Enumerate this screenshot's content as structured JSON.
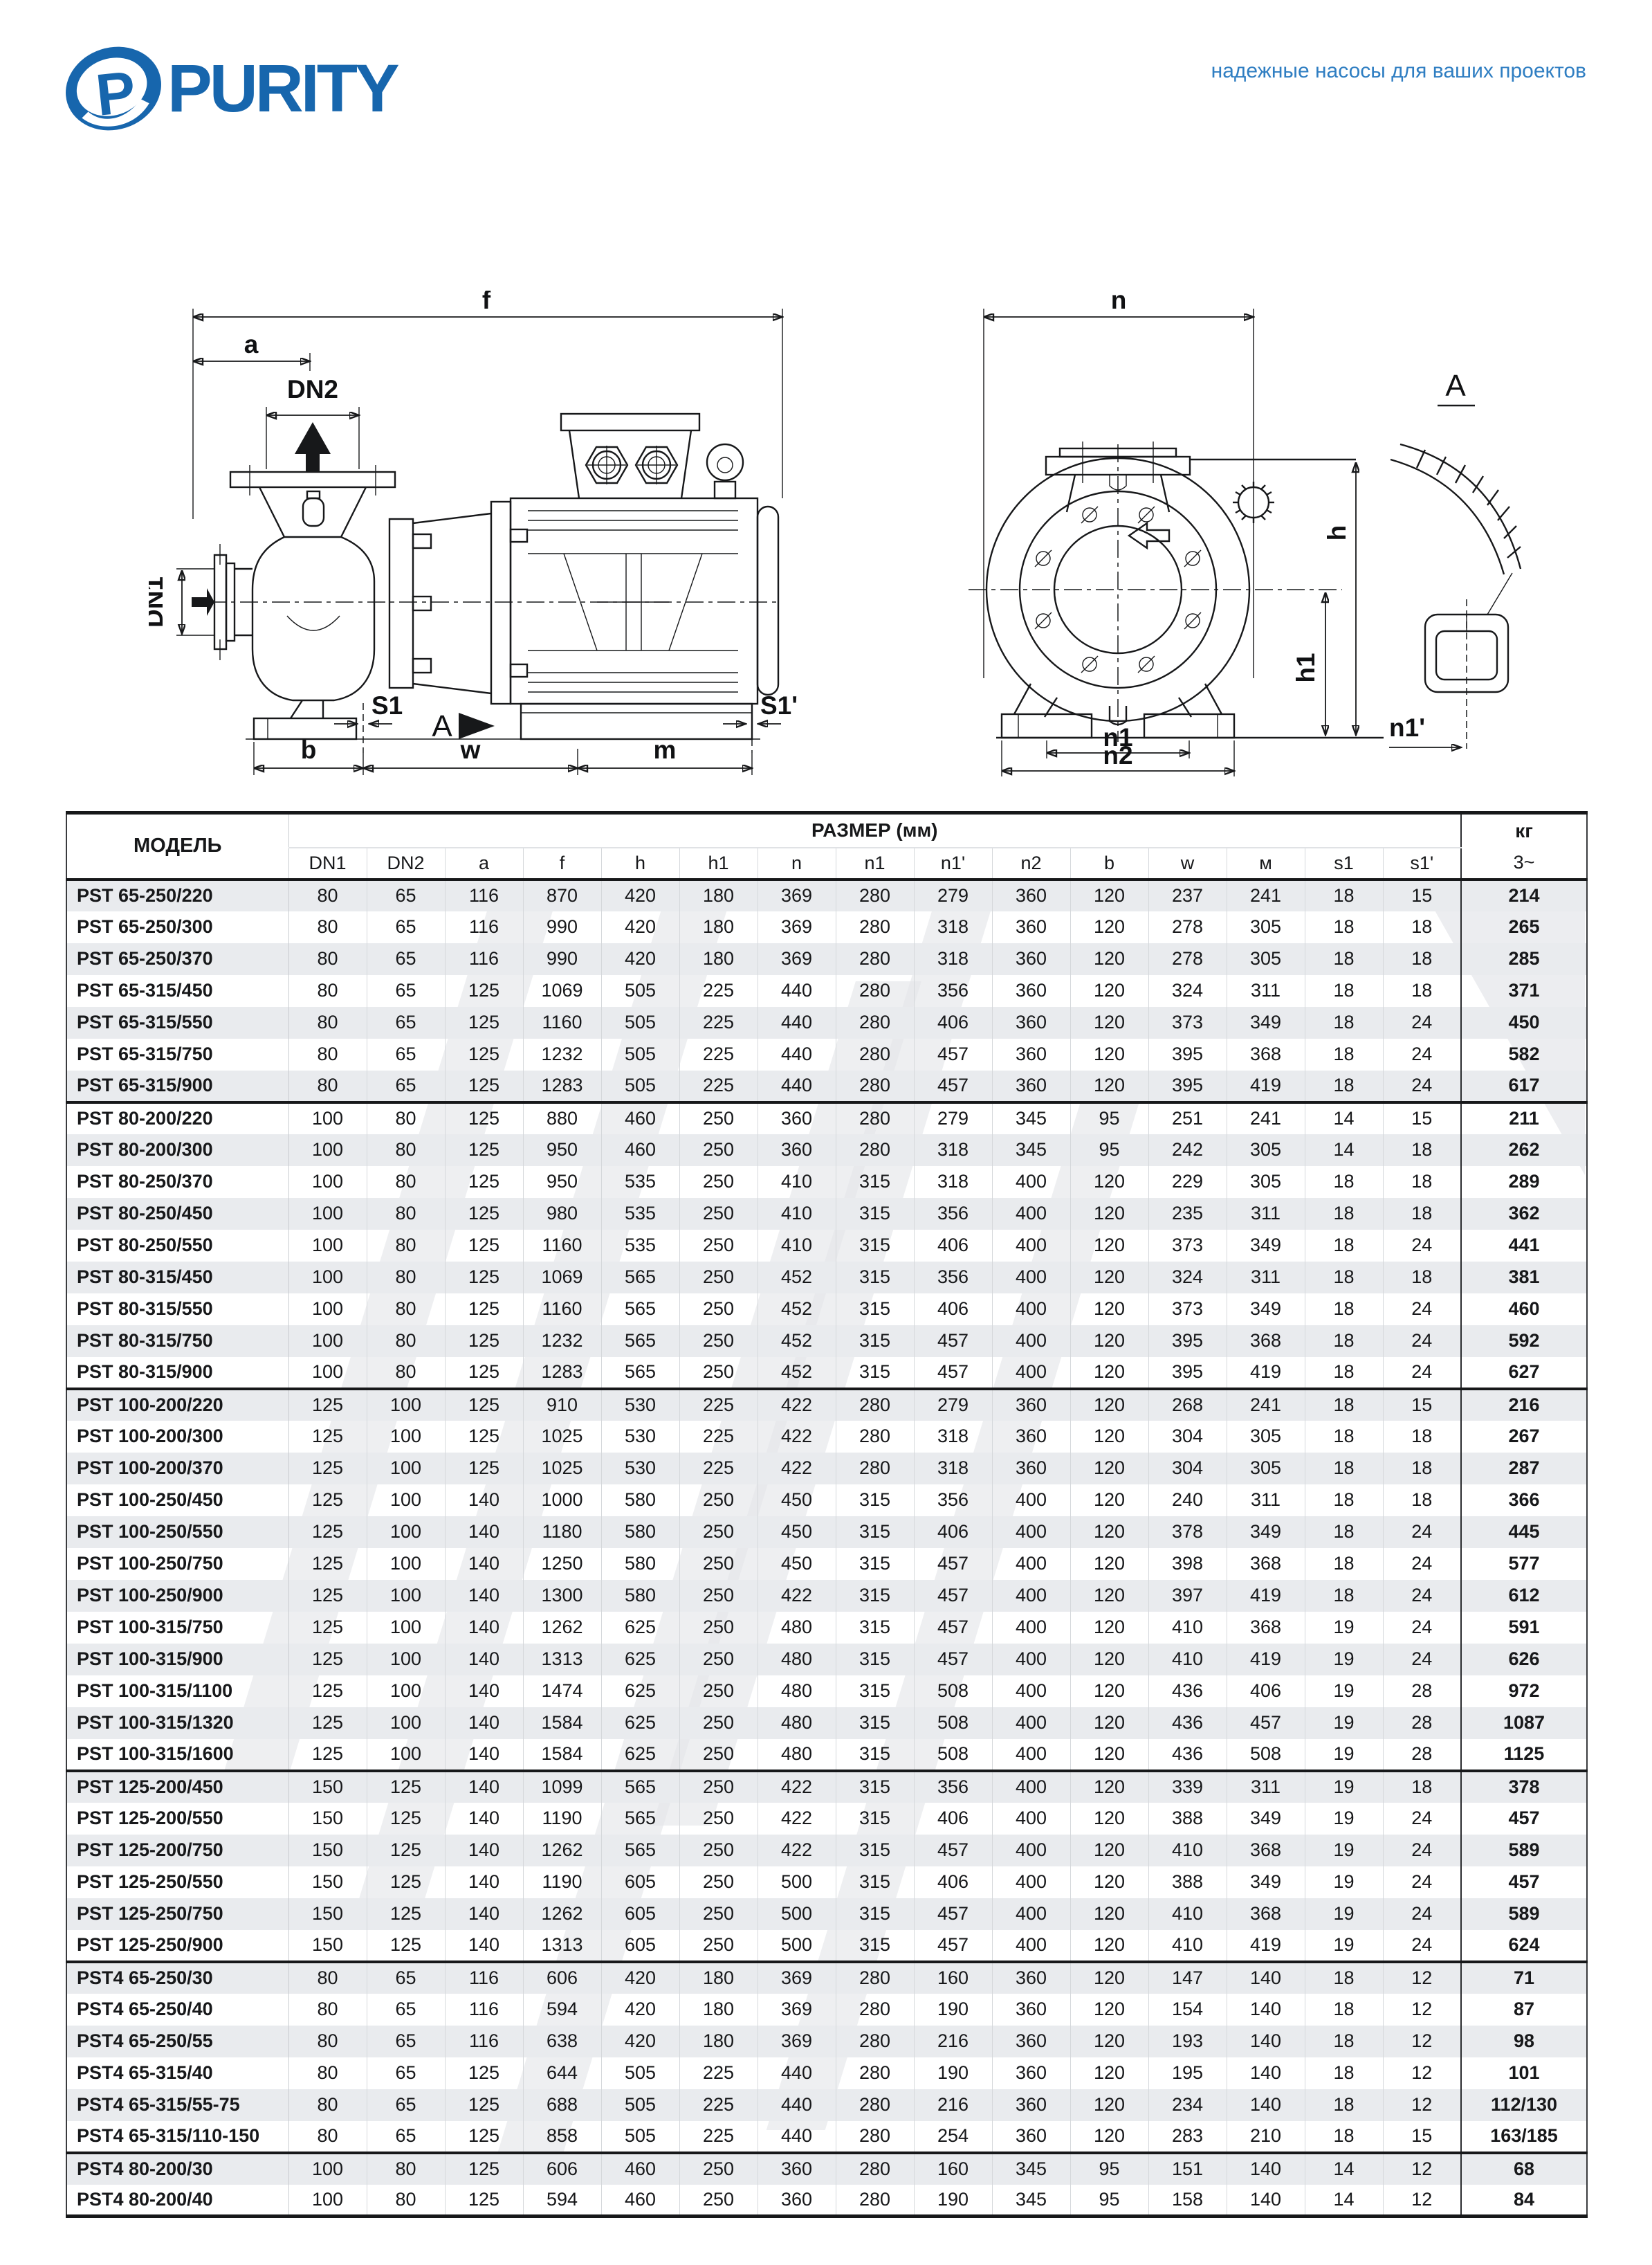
{
  "theme": {
    "logo_blue": "#1766ad",
    "tagline_blue": "#2f7ec2",
    "stripe_gray": "#e9ebee",
    "line_black": "#17181a"
  },
  "header": {
    "logo_text": "PURITY",
    "tagline": "надежные насосы для ваших проектов"
  },
  "drawings": {
    "side_view": {
      "f": "f",
      "a": "a",
      "dn2": "DN2",
      "dn1": "DN1",
      "s1": "S1",
      "view_arrow": "A",
      "s1_prime": "S1'",
      "b": "b",
      "w": "w",
      "m": "m"
    },
    "front_view": {
      "n": "n",
      "h": "h",
      "h1": "h1",
      "n1": "n1",
      "n2": "n2",
      "n1_prime": "n1'",
      "detail": "A"
    }
  },
  "table": {
    "header": {
      "model": "МОДЕЛЬ",
      "size_group": "РАЗМЕР (мм)",
      "weight": "кг",
      "weight_sub": "3~",
      "columns": [
        "DN1",
        "DN2",
        "a",
        "f",
        "h",
        "h1",
        "n",
        "n1",
        "n1'",
        "n2",
        "b",
        "w",
        "м",
        "s1",
        "s1'"
      ]
    },
    "rows": [
      {
        "model": "PST 65-250/220",
        "values": [
          80,
          65,
          116,
          870,
          420,
          180,
          369,
          280,
          279,
          360,
          120,
          237,
          241,
          18,
          15
        ],
        "weight": "214",
        "section_start": false
      },
      {
        "model": "PST 65-250/300",
        "values": [
          80,
          65,
          116,
          990,
          420,
          180,
          369,
          280,
          318,
          360,
          120,
          278,
          305,
          18,
          18
        ],
        "weight": "265",
        "section_start": false
      },
      {
        "model": "PST 65-250/370",
        "values": [
          80,
          65,
          116,
          990,
          420,
          180,
          369,
          280,
          318,
          360,
          120,
          278,
          305,
          18,
          18
        ],
        "weight": "285",
        "section_start": false
      },
      {
        "model": "PST 65-315/450",
        "values": [
          80,
          65,
          125,
          1069,
          505,
          225,
          440,
          280,
          356,
          360,
          120,
          324,
          311,
          18,
          18
        ],
        "weight": "371",
        "section_start": false
      },
      {
        "model": "PST 65-315/550",
        "values": [
          80,
          65,
          125,
          1160,
          505,
          225,
          440,
          280,
          406,
          360,
          120,
          373,
          349,
          18,
          24
        ],
        "weight": "450",
        "section_start": false
      },
      {
        "model": "PST 65-315/750",
        "values": [
          80,
          65,
          125,
          1232,
          505,
          225,
          440,
          280,
          457,
          360,
          120,
          395,
          368,
          18,
          24
        ],
        "weight": "582",
        "section_start": false
      },
      {
        "model": "PST 65-315/900",
        "values": [
          80,
          65,
          125,
          1283,
          505,
          225,
          440,
          280,
          457,
          360,
          120,
          395,
          419,
          18,
          24
        ],
        "weight": "617",
        "section_start": false
      },
      {
        "model": "PST 80-200/220",
        "values": [
          100,
          80,
          125,
          880,
          460,
          250,
          360,
          280,
          279,
          345,
          95,
          251,
          241,
          14,
          15
        ],
        "weight": "211",
        "section_start": true
      },
      {
        "model": "PST 80-200/300",
        "values": [
          100,
          80,
          125,
          950,
          460,
          250,
          360,
          280,
          318,
          345,
          95,
          242,
          305,
          14,
          18
        ],
        "weight": "262",
        "section_start": false
      },
      {
        "model": "PST 80-250/370",
        "values": [
          100,
          80,
          125,
          950,
          535,
          250,
          410,
          315,
          318,
          400,
          120,
          229,
          305,
          18,
          18
        ],
        "weight": "289",
        "section_start": false
      },
      {
        "model": "PST 80-250/450",
        "values": [
          100,
          80,
          125,
          980,
          535,
          250,
          410,
          315,
          356,
          400,
          120,
          235,
          311,
          18,
          18
        ],
        "weight": "362",
        "section_start": false
      },
      {
        "model": "PST 80-250/550",
        "values": [
          100,
          80,
          125,
          1160,
          535,
          250,
          410,
          315,
          406,
          400,
          120,
          373,
          349,
          18,
          24
        ],
        "weight": "441",
        "section_start": false
      },
      {
        "model": "PST 80-315/450",
        "values": [
          100,
          80,
          125,
          1069,
          565,
          250,
          452,
          315,
          356,
          400,
          120,
          324,
          311,
          18,
          18
        ],
        "weight": "381",
        "section_start": false
      },
      {
        "model": "PST 80-315/550",
        "values": [
          100,
          80,
          125,
          1160,
          565,
          250,
          452,
          315,
          406,
          400,
          120,
          373,
          349,
          18,
          24
        ],
        "weight": "460",
        "section_start": false
      },
      {
        "model": "PST 80-315/750",
        "values": [
          100,
          80,
          125,
          1232,
          565,
          250,
          452,
          315,
          457,
          400,
          120,
          395,
          368,
          18,
          24
        ],
        "weight": "592",
        "section_start": false
      },
      {
        "model": "PST 80-315/900",
        "values": [
          100,
          80,
          125,
          1283,
          565,
          250,
          452,
          315,
          457,
          400,
          120,
          395,
          419,
          18,
          24
        ],
        "weight": "627",
        "section_start": false
      },
      {
        "model": "PST 100-200/220",
        "values": [
          125,
          100,
          125,
          910,
          530,
          225,
          422,
          280,
          279,
          360,
          120,
          268,
          241,
          18,
          15
        ],
        "weight": "216",
        "section_start": true
      },
      {
        "model": "PST 100-200/300",
        "values": [
          125,
          100,
          125,
          1025,
          530,
          225,
          422,
          280,
          318,
          360,
          120,
          304,
          305,
          18,
          18
        ],
        "weight": "267",
        "section_start": false
      },
      {
        "model": "PST 100-200/370",
        "values": [
          125,
          100,
          125,
          1025,
          530,
          225,
          422,
          280,
          318,
          360,
          120,
          304,
          305,
          18,
          18
        ],
        "weight": "287",
        "section_start": false
      },
      {
        "model": "PST 100-250/450",
        "values": [
          125,
          100,
          140,
          1000,
          580,
          250,
          450,
          315,
          356,
          400,
          120,
          240,
          311,
          18,
          18
        ],
        "weight": "366",
        "section_start": false
      },
      {
        "model": "PST 100-250/550",
        "values": [
          125,
          100,
          140,
          1180,
          580,
          250,
          450,
          315,
          406,
          400,
          120,
          378,
          349,
          18,
          24
        ],
        "weight": "445",
        "section_start": false
      },
      {
        "model": "PST 100-250/750",
        "values": [
          125,
          100,
          140,
          1250,
          580,
          250,
          450,
          315,
          457,
          400,
          120,
          398,
          368,
          18,
          24
        ],
        "weight": "577",
        "section_start": false
      },
      {
        "model": "PST 100-250/900",
        "values": [
          125,
          100,
          140,
          1300,
          580,
          250,
          422,
          315,
          457,
          400,
          120,
          397,
          419,
          18,
          24
        ],
        "weight": "612",
        "section_start": false
      },
      {
        "model": "PST 100-315/750",
        "values": [
          125,
          100,
          140,
          1262,
          625,
          250,
          480,
          315,
          457,
          400,
          120,
          410,
          368,
          19,
          24
        ],
        "weight": "591",
        "section_start": false
      },
      {
        "model": "PST 100-315/900",
        "values": [
          125,
          100,
          140,
          1313,
          625,
          250,
          480,
          315,
          457,
          400,
          120,
          410,
          419,
          19,
          24
        ],
        "weight": "626",
        "section_start": false
      },
      {
        "model": "PST 100-315/1100",
        "values": [
          125,
          100,
          140,
          1474,
          625,
          250,
          480,
          315,
          508,
          400,
          120,
          436,
          406,
          19,
          28
        ],
        "weight": "972",
        "section_start": false
      },
      {
        "model": "PST 100-315/1320",
        "values": [
          125,
          100,
          140,
          1584,
          625,
          250,
          480,
          315,
          508,
          400,
          120,
          436,
          457,
          19,
          28
        ],
        "weight": "1087",
        "section_start": false
      },
      {
        "model": "PST 100-315/1600",
        "values": [
          125,
          100,
          140,
          1584,
          625,
          250,
          480,
          315,
          508,
          400,
          120,
          436,
          508,
          19,
          28
        ],
        "weight": "1125",
        "section_start": false
      },
      {
        "model": "PST 125-200/450",
        "values": [
          150,
          125,
          140,
          1099,
          565,
          250,
          422,
          315,
          356,
          400,
          120,
          339,
          311,
          19,
          18
        ],
        "weight": "378",
        "section_start": true
      },
      {
        "model": "PST 125-200/550",
        "values": [
          150,
          125,
          140,
          1190,
          565,
          250,
          422,
          315,
          406,
          400,
          120,
          388,
          349,
          19,
          24
        ],
        "weight": "457",
        "section_start": false
      },
      {
        "model": "PST 125-200/750",
        "values": [
          150,
          125,
          140,
          1262,
          565,
          250,
          422,
          315,
          457,
          400,
          120,
          410,
          368,
          19,
          24
        ],
        "weight": "589",
        "section_start": false
      },
      {
        "model": "PST 125-250/550",
        "values": [
          150,
          125,
          140,
          1190,
          605,
          250,
          500,
          315,
          406,
          400,
          120,
          388,
          349,
          19,
          24
        ],
        "weight": "457",
        "section_start": false
      },
      {
        "model": "PST 125-250/750",
        "values": [
          150,
          125,
          140,
          1262,
          605,
          250,
          500,
          315,
          457,
          400,
          120,
          410,
          368,
          19,
          24
        ],
        "weight": "589",
        "section_start": false
      },
      {
        "model": "PST 125-250/900",
        "values": [
          150,
          125,
          140,
          1313,
          605,
          250,
          500,
          315,
          457,
          400,
          120,
          410,
          419,
          19,
          24
        ],
        "weight": "624",
        "section_start": false
      },
      {
        "model": "PST4 65-250/30",
        "values": [
          80,
          65,
          116,
          606,
          420,
          180,
          369,
          280,
          160,
          360,
          120,
          147,
          140,
          18,
          12
        ],
        "weight": "71",
        "section_start": true
      },
      {
        "model": "PST4 65-250/40",
        "values": [
          80,
          65,
          116,
          594,
          420,
          180,
          369,
          280,
          190,
          360,
          120,
          154,
          140,
          18,
          12
        ],
        "weight": "87",
        "section_start": false
      },
      {
        "model": "PST4 65-250/55",
        "values": [
          80,
          65,
          116,
          638,
          420,
          180,
          369,
          280,
          216,
          360,
          120,
          193,
          140,
          18,
          12
        ],
        "weight": "98",
        "section_start": false
      },
      {
        "model": "PST4 65-315/40",
        "values": [
          80,
          65,
          125,
          644,
          505,
          225,
          440,
          280,
          190,
          360,
          120,
          195,
          140,
          18,
          12
        ],
        "weight": "101",
        "section_start": false
      },
      {
        "model": "PST4 65-315/55-75",
        "values": [
          80,
          65,
          125,
          688,
          505,
          225,
          440,
          280,
          216,
          360,
          120,
          234,
          140,
          18,
          12
        ],
        "weight": "112/130",
        "section_start": false
      },
      {
        "model": "PST4 65-315/110-150",
        "values": [
          80,
          65,
          125,
          858,
          505,
          225,
          440,
          280,
          254,
          360,
          120,
          283,
          210,
          18,
          15
        ],
        "weight": "163/185",
        "section_start": false
      },
      {
        "model": "PST4 80-200/30",
        "values": [
          100,
          80,
          125,
          606,
          460,
          250,
          360,
          280,
          160,
          345,
          95,
          151,
          140,
          14,
          12
        ],
        "weight": "68",
        "section_start": true
      },
      {
        "model": "PST4 80-200/40",
        "values": [
          100,
          80,
          125,
          594,
          460,
          250,
          360,
          280,
          190,
          345,
          95,
          158,
          140,
          14,
          12
        ],
        "weight": "84",
        "section_start": false
      }
    ]
  }
}
